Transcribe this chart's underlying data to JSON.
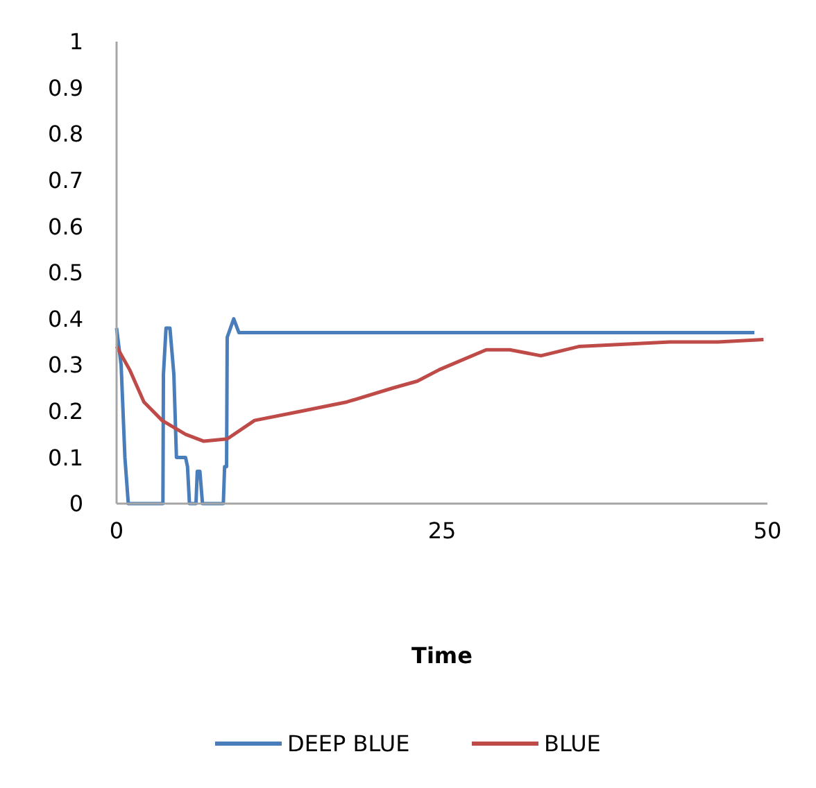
{
  "chart_data": {
    "type": "line",
    "xlabel": "Time",
    "xlim": [
      0,
      50
    ],
    "xticks": [
      0,
      25,
      50
    ],
    "ylim": [
      0,
      1
    ],
    "yticks": [
      0,
      0.1,
      0.2,
      0.3,
      0.4,
      0.5,
      0.6,
      0.7,
      0.8,
      0.9,
      1
    ],
    "grid": false,
    "legend": "bottom",
    "marker": "none",
    "line_style": "solid",
    "series": [
      {
        "name": "DEEP BLUE",
        "color": "#4a7ebb",
        "x": [
          0,
          0.35,
          0.64,
          0.9,
          3.56,
          3.6,
          3.8,
          4.1,
          4.4,
          4.6,
          5.3,
          5.45,
          5.6,
          6.1,
          6.2,
          6.4,
          6.6,
          8.2,
          8.3,
          8.45,
          8.5,
          9.0,
          9.4,
          49
        ],
        "values": [
          0.38,
          0.3,
          0.1,
          0,
          0,
          0.28,
          0.38,
          0.38,
          0.28,
          0.1,
          0.1,
          0.08,
          0,
          0,
          0.07,
          0.07,
          0,
          0,
          0.08,
          0.08,
          0.36,
          0.4,
          0.37,
          0.37
        ]
      },
      {
        "name": "BLUE",
        "color": "#be4b48",
        "x": [
          0,
          1,
          2.1,
          3.5,
          5.3,
          6.7,
          8.5,
          10.6,
          14.2,
          17.7,
          21.2,
          23.1,
          24.8,
          28.4,
          30.2,
          32.6,
          35.5,
          39,
          42.5,
          46.2,
          49.7
        ],
        "values": [
          0.34,
          0.29,
          0.22,
          0.18,
          0.15,
          0.135,
          0.14,
          0.18,
          0.2,
          0.22,
          0.25,
          0.265,
          0.29,
          0.333,
          0.333,
          0.32,
          0.34,
          0.345,
          0.35,
          0.35,
          0.355
        ]
      }
    ]
  }
}
